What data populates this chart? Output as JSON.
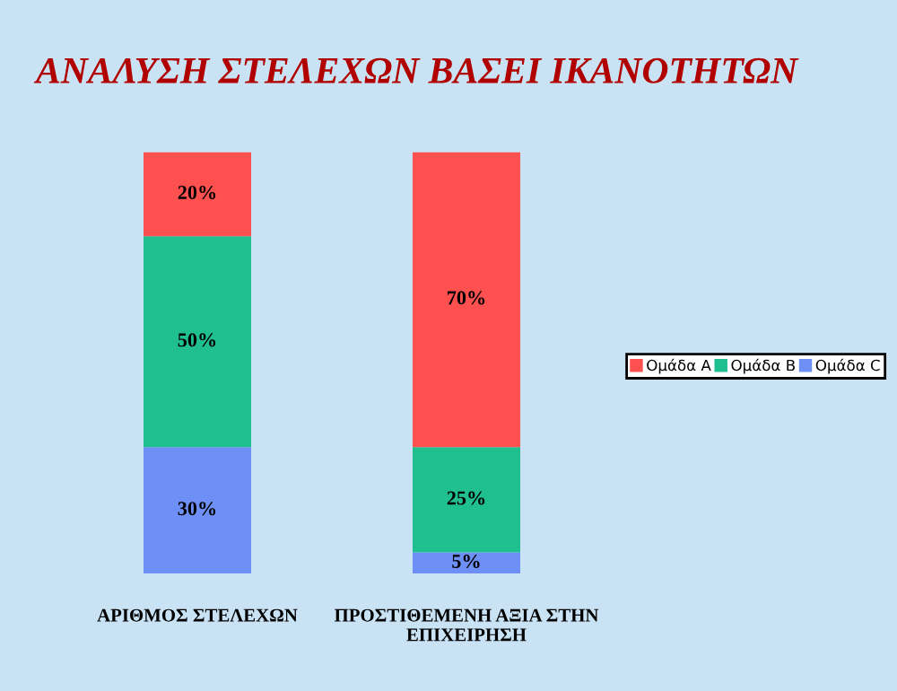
{
  "chart_data": {
    "type": "bar",
    "title": "ΑΝΑΛΥΣΗ ΣΤΕΛΕΧΩΝ ΒΑΣΕΙ ΙΚΑΝΟΤΗΤΩΝ",
    "categories": [
      "ΑΡΙΘΜΟΣ ΣΤΕΛΕΧΩΝ",
      "ΠΡΟΣΤΙΘΕΜΕΝΗ ΑΞΙΑ ΣΤΗΝ ΕΠΙΧΕΙΡΗΣΗ"
    ],
    "stacked": true,
    "legend": "right",
    "grid": false,
    "series": [
      {
        "name": "Ομάδα C",
        "color": "#6e8ff5",
        "values": [
          30,
          5
        ],
        "value_labels": [
          "30%",
          "5%"
        ]
      },
      {
        "name": "Ομάδα B",
        "color": "#1fbf8f",
        "values": [
          50,
          25
        ],
        "value_labels": [
          "50%",
          "25%"
        ]
      },
      {
        "name": "Ομάδα A",
        "color": "#ff5050",
        "values": [
          20,
          70
        ],
        "value_labels": [
          "20%",
          "70%"
        ]
      }
    ]
  }
}
